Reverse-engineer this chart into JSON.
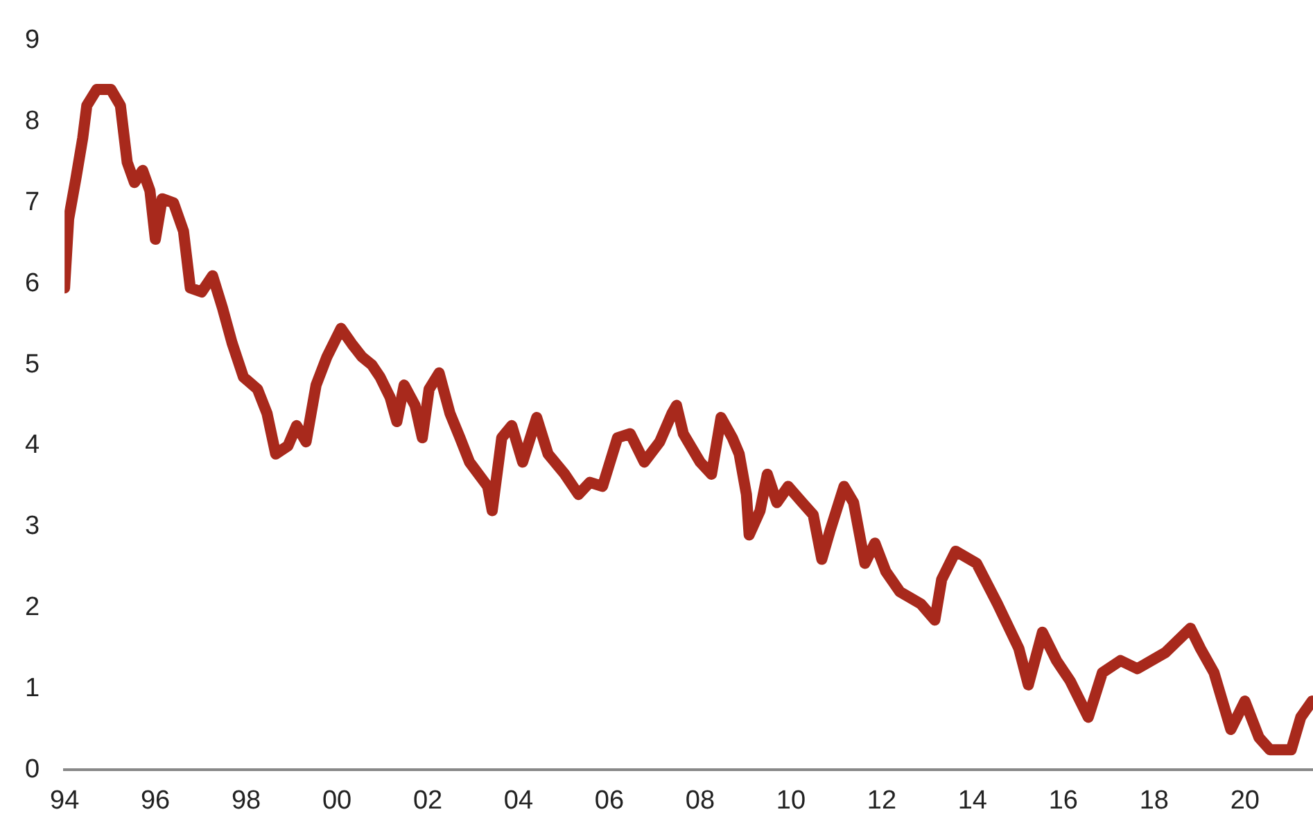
{
  "chart_data": {
    "type": "line",
    "marker": "none",
    "grid": false,
    "legend": false,
    "xlim": [
      1994,
      2021.5
    ],
    "ylim": [
      0,
      9
    ],
    "xticks": [
      {
        "value": 1994,
        "label": "94"
      },
      {
        "value": 1996,
        "label": "96"
      },
      {
        "value": 1998,
        "label": "98"
      },
      {
        "value": 2000,
        "label": "00"
      },
      {
        "value": 2002,
        "label": "02"
      },
      {
        "value": 2004,
        "label": "04"
      },
      {
        "value": 2006,
        "label": "06"
      },
      {
        "value": 2008,
        "label": "08"
      },
      {
        "value": 2010,
        "label": "10"
      },
      {
        "value": 2012,
        "label": "12"
      },
      {
        "value": 2014,
        "label": "14"
      },
      {
        "value": 2016,
        "label": "16"
      },
      {
        "value": 2018,
        "label": "18"
      },
      {
        "value": 2020,
        "label": "20"
      }
    ],
    "yticks": [
      0,
      1,
      2,
      3,
      4,
      5,
      6,
      7,
      8,
      9
    ],
    "series": [
      {
        "color": "#a8291c",
        "x": [
          1994.0,
          1994.09,
          1994.25,
          1994.4,
          1994.49,
          1994.71,
          1995.02,
          1995.23,
          1995.38,
          1995.54,
          1995.72,
          1995.88,
          1996.0,
          1996.15,
          1996.4,
          1996.62,
          1996.77,
          1997.02,
          1997.26,
          1997.48,
          1997.69,
          1997.94,
          1998.25,
          1998.46,
          1998.65,
          1998.92,
          1999.11,
          1999.32,
          1999.54,
          1999.78,
          2000.09,
          2000.34,
          2000.55,
          2000.77,
          2000.95,
          2001.17,
          2001.32,
          2001.48,
          2001.72,
          2001.88,
          2002.03,
          2002.25,
          2002.49,
          2002.71,
          2002.92,
          2003.32,
          2003.42,
          2003.63,
          2003.85,
          2004.09,
          2004.4,
          2004.65,
          2005.02,
          2005.32,
          2005.57,
          2005.85,
          2006.18,
          2006.46,
          2006.77,
          2007.11,
          2007.38,
          2007.48,
          2007.63,
          2008.0,
          2008.25,
          2008.46,
          2008.71,
          2008.86,
          2009.02,
          2009.08,
          2009.32,
          2009.48,
          2009.69,
          2009.94,
          2010.25,
          2010.49,
          2010.68,
          2010.86,
          2011.17,
          2011.38,
          2011.63,
          2011.85,
          2012.09,
          2012.4,
          2012.86,
          2013.17,
          2013.32,
          2013.63,
          2014.09,
          2014.55,
          2015.02,
          2015.23,
          2015.54,
          2015.85,
          2016.15,
          2016.55,
          2016.86,
          2017.26,
          2017.63,
          2018.25,
          2018.8,
          2019.02,
          2019.32,
          2019.69,
          2020.0,
          2020.31,
          2020.55,
          2021.02,
          2021.23,
          2021.48
        ],
        "values": [
          5.95,
          6.8,
          7.3,
          7.8,
          8.2,
          8.4,
          8.4,
          8.2,
          7.5,
          7.25,
          7.4,
          7.15,
          6.55,
          7.05,
          7.0,
          6.65,
          5.95,
          5.9,
          6.1,
          5.7,
          5.27,
          4.85,
          4.7,
          4.4,
          3.9,
          4.0,
          4.25,
          4.05,
          4.75,
          5.1,
          5.45,
          5.25,
          5.1,
          5.0,
          4.85,
          4.6,
          4.3,
          4.75,
          4.5,
          4.1,
          4.7,
          4.9,
          4.4,
          4.1,
          3.8,
          3.5,
          3.2,
          4.1,
          4.25,
          3.8,
          4.35,
          3.9,
          3.65,
          3.4,
          3.55,
          3.5,
          4.1,
          4.15,
          3.8,
          4.05,
          4.4,
          4.5,
          4.15,
          3.8,
          3.65,
          4.35,
          4.1,
          3.9,
          3.4,
          2.9,
          3.2,
          3.65,
          3.3,
          3.5,
          3.3,
          3.15,
          2.6,
          2.95,
          3.5,
          3.3,
          2.55,
          2.8,
          2.45,
          2.2,
          2.05,
          1.85,
          2.35,
          2.7,
          2.55,
          2.05,
          1.5,
          1.05,
          1.7,
          1.35,
          1.1,
          0.65,
          1.2,
          1.35,
          1.25,
          1.45,
          1.75,
          1.5,
          1.2,
          0.5,
          0.85,
          0.4,
          0.25,
          0.25,
          0.65,
          0.85
        ]
      }
    ]
  }
}
